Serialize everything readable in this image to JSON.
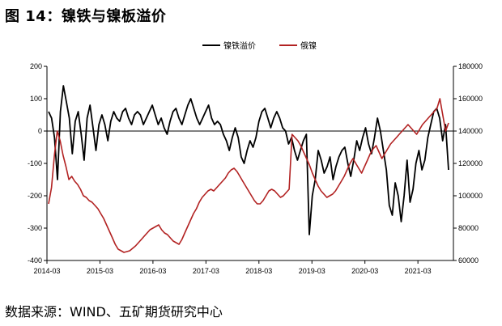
{
  "title": "图 14：镍铁与镍板溢价",
  "source": "数据来源：WIND、五矿期货研究中心",
  "chart_data": {
    "type": "line",
    "series": [
      {
        "name": "镍铁溢价",
        "axis": "left",
        "color": "#000000",
        "values": [
          60,
          40,
          -20,
          -150,
          60,
          140,
          90,
          40,
          -70,
          30,
          60,
          -10,
          -90,
          40,
          80,
          10,
          -60,
          20,
          50,
          20,
          -30,
          30,
          60,
          40,
          30,
          60,
          70,
          40,
          20,
          50,
          60,
          50,
          20,
          40,
          60,
          80,
          50,
          20,
          40,
          10,
          -10,
          30,
          60,
          70,
          40,
          20,
          50,
          80,
          100,
          70,
          40,
          20,
          40,
          60,
          80,
          40,
          20,
          30,
          20,
          -10,
          -30,
          -60,
          -20,
          10,
          -20,
          -80,
          -100,
          -60,
          -30,
          -50,
          -20,
          30,
          60,
          70,
          40,
          10,
          40,
          60,
          40,
          10,
          0,
          -40,
          -20,
          -60,
          -90,
          -60,
          -30,
          -10,
          -320,
          -200,
          -150,
          -60,
          -90,
          -130,
          -110,
          -80,
          -150,
          -110,
          -80,
          -60,
          -50,
          -100,
          -140,
          -90,
          -30,
          -60,
          -20,
          10,
          -40,
          -70,
          -20,
          40,
          0,
          -60,
          -120,
          -230,
          -260,
          -160,
          -200,
          -280,
          -200,
          -90,
          -220,
          -180,
          -100,
          -60,
          -120,
          -90,
          -20,
          20,
          60,
          70,
          40,
          -30,
          20,
          -120
        ]
      },
      {
        "name": "俄镍",
        "axis": "right",
        "color": "#b22222",
        "values": [
          95000,
          105000,
          125000,
          140000,
          134000,
          125000,
          118000,
          110000,
          112000,
          109000,
          107000,
          104000,
          100000,
          99000,
          97000,
          96000,
          94000,
          92000,
          89000,
          86000,
          82000,
          78000,
          74000,
          70000,
          67000,
          66000,
          65000,
          65500,
          66000,
          67500,
          69000,
          71000,
          73000,
          75000,
          77000,
          79000,
          80000,
          81000,
          82000,
          79000,
          77000,
          76000,
          74000,
          72000,
          71000,
          70000,
          73000,
          77000,
          81000,
          85000,
          89000,
          92000,
          96000,
          99000,
          101000,
          103000,
          104000,
          103000,
          105000,
          107000,
          109000,
          111000,
          114000,
          116000,
          117000,
          115000,
          112000,
          109000,
          106000,
          103000,
          100000,
          97000,
          95000,
          95000,
          97000,
          100000,
          103000,
          104000,
          103000,
          101000,
          99000,
          100000,
          102000,
          104000,
          138000,
          136000,
          134000,
          131000,
          127000,
          123000,
          119000,
          114000,
          110000,
          106000,
          103000,
          101000,
          99000,
          100000,
          101000,
          103000,
          106000,
          109000,
          112000,
          116000,
          120000,
          123000,
          120000,
          117000,
          114000,
          118000,
          122000,
          126000,
          129000,
          131000,
          127000,
          123000,
          126000,
          129000,
          132000,
          134000,
          136000,
          138000,
          140000,
          142000,
          144000,
          142000,
          140000,
          138000,
          141000,
          144000,
          146000,
          148000,
          150000,
          152000,
          154000,
          160000,
          150000,
          140000,
          145000
        ]
      }
    ],
    "x_tick_labels": [
      "2014-03",
      "2015-03",
      "2016-03",
      "2017-03",
      "2018-03",
      "2019-03",
      "2020-03",
      "2021-03"
    ],
    "y_left": {
      "ticks": [
        200,
        100,
        0,
        -100,
        -200,
        -300,
        -400
      ],
      "range": [
        -400,
        200
      ]
    },
    "y_right": {
      "ticks": [
        180000,
        160000,
        140000,
        120000,
        100000,
        80000,
        60000
      ],
      "range": [
        60000,
        180000
      ]
    },
    "x_range": [
      "2014-03",
      "2021-11"
    ],
    "legend": {
      "position": "top-center",
      "items": [
        "镍铁溢价",
        "俄镍"
      ]
    },
    "zero_line": true,
    "grid": false
  }
}
